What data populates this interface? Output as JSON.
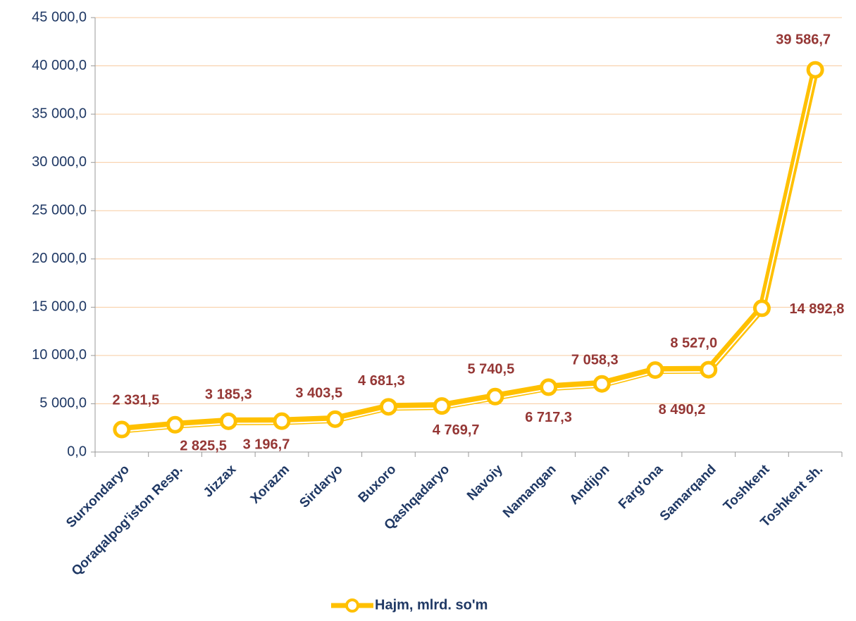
{
  "chart_data": {
    "type": "line",
    "categories": [
      "Surxondaryo",
      "Qoraqalpog'iston Resp.",
      "Jizzax",
      "Xorazm",
      "Sirdaryo",
      "Buxoro",
      "Qashqadaryo",
      "Navoiy",
      "Namangan",
      "Andijon",
      "Farg'ona",
      "Samarqand",
      "Toshkent",
      "Toshkent sh."
    ],
    "series": [
      {
        "name": "Hajm, mlrd. so'm",
        "color": "#FFC000",
        "values": [
          2331.5,
          2825.5,
          3185.3,
          3196.7,
          3403.5,
          4681.3,
          4769.7,
          5740.5,
          6717.3,
          7058.3,
          8490.2,
          8527.0,
          14892.8,
          39586.7
        ],
        "value_labels": [
          "2 331,5",
          "2 825,5",
          "3 185,3",
          "3 196,7",
          "3 403,5",
          "4 681,3",
          "4 769,7",
          "5 740,5",
          "6 717,3",
          "7 058,3",
          "8 490,2",
          "8 527,0",
          "14 892,8",
          "39 586,7"
        ]
      }
    ],
    "ylim": [
      0,
      45000
    ],
    "yticks": [
      {
        "value": 0,
        "label": "0,0"
      },
      {
        "value": 5000,
        "label": "5 000,0"
      },
      {
        "value": 10000,
        "label": "10 000,0"
      },
      {
        "value": 15000,
        "label": "15 000,0"
      },
      {
        "value": 20000,
        "label": "20 000,0"
      },
      {
        "value": 25000,
        "label": "25 000,0"
      },
      {
        "value": 30000,
        "label": "30 000,0"
      },
      {
        "value": 35000,
        "label": "35 000,0"
      },
      {
        "value": 40000,
        "label": "40 000,0"
      },
      {
        "value": 45000,
        "label": "45 000,0"
      }
    ],
    "grid": true,
    "legend": "bottom"
  }
}
